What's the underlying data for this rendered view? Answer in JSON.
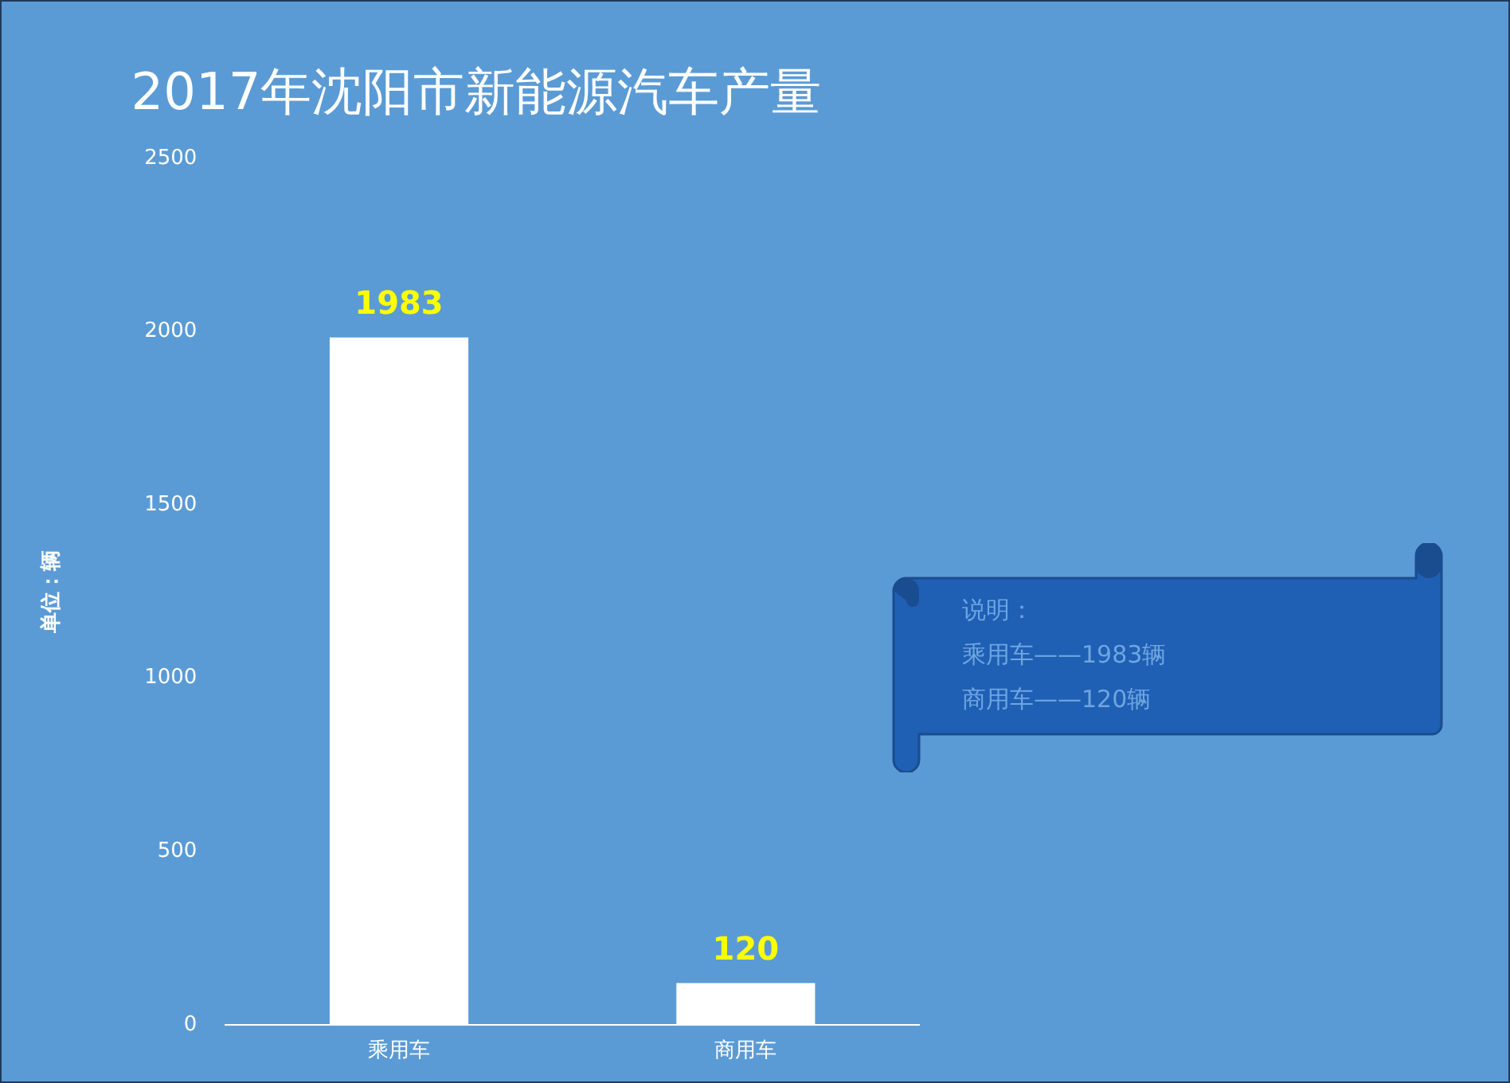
{
  "chart_data": {
    "type": "bar",
    "title": "2017年沈阳市新能源汽车产量",
    "ylabel": "单位：辆",
    "categories": [
      "乘用车",
      "商用车"
    ],
    "values": [
      1983,
      120
    ],
    "color": "#ffffff",
    "ylim": [
      0,
      2500
    ],
    "yticks": [
      0,
      500,
      1000,
      1500,
      2000,
      2500
    ],
    "grid": false,
    "legend": false,
    "data_labels": true,
    "annotations": [
      "说明：",
      "乘用车——1983辆",
      "商用车——120辆"
    ]
  }
}
